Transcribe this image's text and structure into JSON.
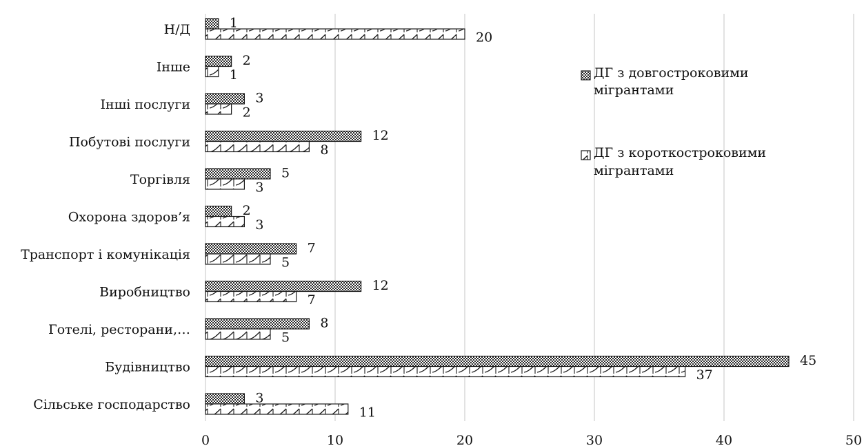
{
  "chart_data": {
    "type": "bar",
    "orientation": "horizontal",
    "categories": [
      "Сільське господарство",
      "Будівництво",
      "Готелі, ресторани,…",
      "Виробництво",
      "Транспорт і комунікація",
      "Охорона здоров’я",
      "Торгівля",
      "Побутові послуги",
      "Інші послуги",
      "Інше",
      "Н/Д"
    ],
    "series": [
      {
        "name": "ДГ з довгостроковими мігрантами",
        "values": [
          3,
          45,
          8,
          12,
          7,
          2,
          5,
          12,
          3,
          2,
          1
        ],
        "pattern": "crosshatch"
      },
      {
        "name": "ДГ з короткостроковими мігрантами",
        "values": [
          11,
          37,
          5,
          7,
          5,
          3,
          3,
          8,
          2,
          1,
          20
        ],
        "pattern": "wave"
      }
    ],
    "x_ticks": [
      "0",
      "10",
      "20",
      "30",
      "40",
      "50"
    ],
    "xlim": [
      0,
      50
    ],
    "grid": "vertical",
    "legend_position": "right",
    "title": "",
    "xlabel": "",
    "ylabel": "",
    "colors": {
      "bar_fill": "#ffffff",
      "pattern_ink": "#1a1a1a",
      "grid": "#d9d9d9"
    }
  }
}
